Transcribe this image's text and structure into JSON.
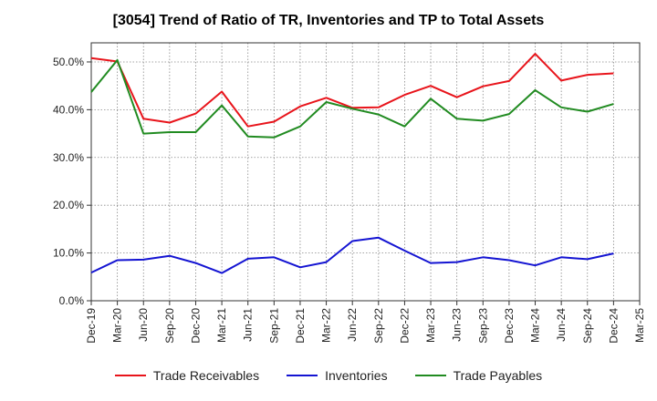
{
  "chart_data": {
    "type": "line",
    "title": "[3054]  Trend of Ratio of TR, Inventories and TP to Total Assets",
    "xlabel": "",
    "ylabel": "",
    "x": [
      "Dec-19",
      "Mar-20",
      "Jun-20",
      "Sep-20",
      "Dec-20",
      "Mar-21",
      "Jun-21",
      "Sep-21",
      "Dec-21",
      "Mar-22",
      "Jun-22",
      "Sep-22",
      "Dec-22",
      "Mar-23",
      "Jun-23",
      "Sep-23",
      "Dec-23",
      "Mar-24",
      "Jun-24",
      "Sep-24",
      "Dec-24",
      "Mar-25"
    ],
    "ylim": [
      0,
      54
    ],
    "yticks": [
      0,
      10,
      20,
      30,
      40,
      50
    ],
    "ytick_labels": [
      "0.0%",
      "10.0%",
      "20.0%",
      "30.0%",
      "40.0%",
      "50.0%"
    ],
    "grid": true,
    "legend_position": "bottom",
    "series": [
      {
        "name": "Trade Receivables",
        "color": "#e8141b",
        "values": [
          50.8,
          50.1,
          38.1,
          37.3,
          39.2,
          43.8,
          36.5,
          37.5,
          40.7,
          42.5,
          40.4,
          40.5,
          43.1,
          45.0,
          42.6,
          44.9,
          46.0,
          51.7,
          46.1,
          47.3,
          47.6,
          null
        ]
      },
      {
        "name": "Inventories",
        "color": "#1414d2",
        "values": [
          5.9,
          8.5,
          8.6,
          9.4,
          7.9,
          5.8,
          8.8,
          9.1,
          7.0,
          8.1,
          12.5,
          13.2,
          10.5,
          7.9,
          8.1,
          9.1,
          8.5,
          7.4,
          9.1,
          8.7,
          9.9,
          null
        ]
      },
      {
        "name": "Trade Payables",
        "color": "#218b21",
        "values": [
          43.7,
          50.4,
          35.0,
          35.3,
          35.3,
          40.9,
          34.4,
          34.2,
          36.5,
          41.6,
          40.2,
          39.0,
          36.5,
          42.3,
          38.1,
          37.7,
          39.1,
          44.1,
          40.5,
          39.6,
          41.2,
          null
        ]
      }
    ]
  }
}
